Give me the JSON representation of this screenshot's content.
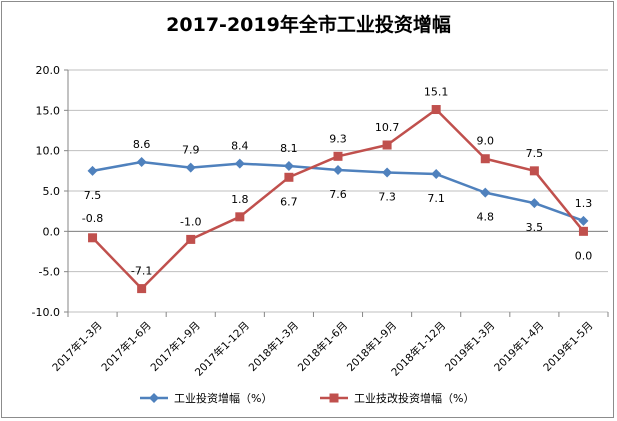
{
  "chart_data": {
    "type": "line",
    "title": "2017-2019年全市工业投资增幅",
    "categories": [
      "2017年1-3月",
      "2017年1-6月",
      "2017年1-9月",
      "2017年1-12月",
      "2018年1-3月",
      "2018年1-6月",
      "2018年1-9月",
      "2018年1-12月",
      "2019年1-3月",
      "2019年1-4月",
      "2019年1-5月"
    ],
    "ylim": [
      -10,
      20
    ],
    "yticks": [
      "20.0",
      "15.0",
      "10.0",
      "5.0",
      "0.0",
      "-5.0",
      "-10.0"
    ],
    "grid": true,
    "legend": "bottom",
    "series": [
      {
        "name": "工业投资增幅（%）",
        "color": "#4F81BD",
        "marker": "diamond",
        "values": [
          7.5,
          8.6,
          7.9,
          8.4,
          8.1,
          7.6,
          7.3,
          7.1,
          4.8,
          3.5,
          1.3
        ],
        "labels": [
          "7.5",
          "8.6",
          "7.9",
          "8.4",
          "8.1",
          "7.6",
          "7.3",
          "7.1",
          "4.8",
          "3.5",
          "1.3"
        ]
      },
      {
        "name": "工业技改投资增幅（%）",
        "color": "#C0504D",
        "marker": "square",
        "values": [
          -0.8,
          -7.1,
          -1.0,
          1.8,
          6.7,
          9.3,
          10.7,
          15.1,
          9.0,
          7.5,
          0.0
        ],
        "labels": [
          "-0.8",
          "-7.1",
          "-1.0",
          "1.8",
          "6.7",
          "9.3",
          "10.7",
          "15.1",
          "9.0",
          "7.5",
          "0.0"
        ]
      }
    ]
  }
}
